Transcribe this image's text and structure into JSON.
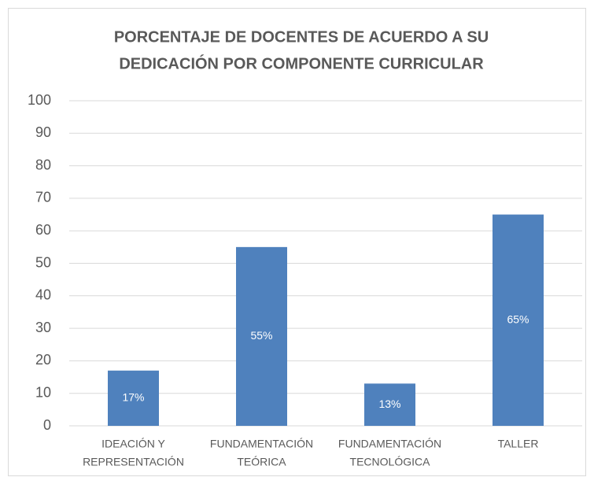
{
  "chart_data": {
    "type": "bar",
    "title": [
      "PORCENTAJE DE DOCENTES DE ACUERDO A SU",
      "DEDICACIÓN POR COMPONENTE CURRICULAR"
    ],
    "categories": [
      [
        "IDEACIÓN Y",
        "REPRESENTACIÓN"
      ],
      [
        "FUNDAMENTACIÓN",
        "TEÓRICA"
      ],
      [
        "FUNDAMENTACIÓN",
        "TECNOLÓGICA"
      ],
      [
        "TALLER"
      ]
    ],
    "values": [
      17,
      55,
      13,
      65
    ],
    "value_labels": [
      "17%",
      "55%",
      "13%",
      "65%"
    ],
    "color": "#4f81bd",
    "ylim": [
      0,
      100
    ],
    "yticks": [
      0,
      10,
      20,
      30,
      40,
      50,
      60,
      70,
      80,
      90,
      100
    ],
    "grid": true
  }
}
